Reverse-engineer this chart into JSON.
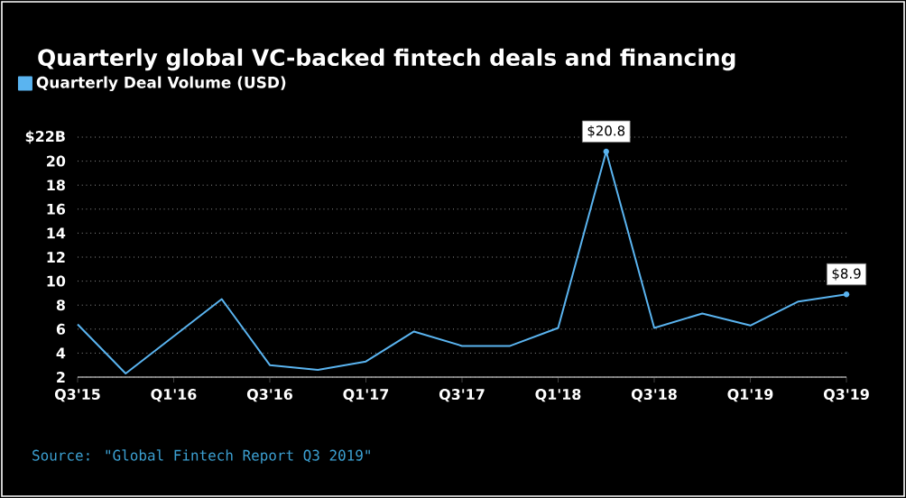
{
  "chart_data": {
    "type": "line",
    "title": "Quarterly global VC-backed fintech deals and financing",
    "categories": [
      "Q3'15",
      null,
      "Q1'16",
      null,
      "Q3'16",
      null,
      "Q1'17",
      null,
      "Q3'17",
      null,
      "Q1'18",
      null,
      "Q3'18",
      null,
      "Q1'19",
      null,
      "Q3'19"
    ],
    "series": [
      {
        "name": "Quarterly Deal Volume (USD)",
        "color": "#5ab4f0",
        "values": [
          6.4,
          2.3,
          5.4,
          8.5,
          3.0,
          2.6,
          3.3,
          5.8,
          4.6,
          4.6,
          6.1,
          20.8,
          6.1,
          7.3,
          6.3,
          8.3,
          8.9
        ],
        "value_labels": [
          null,
          null,
          null,
          null,
          null,
          null,
          null,
          null,
          null,
          null,
          null,
          "$20.8",
          null,
          null,
          null,
          null,
          "$8.9"
        ]
      }
    ],
    "ylim": [
      2,
      22
    ],
    "yticks": [
      2,
      4,
      6,
      8,
      10,
      12,
      14,
      16,
      18,
      20,
      {
        "value": 22,
        "label": "$22B"
      }
    ],
    "grid": "y",
    "legend": "top left",
    "line_style": "solid",
    "annotations": [
      "Source: \"Global Fintech Report Q3 2019\""
    ]
  }
}
